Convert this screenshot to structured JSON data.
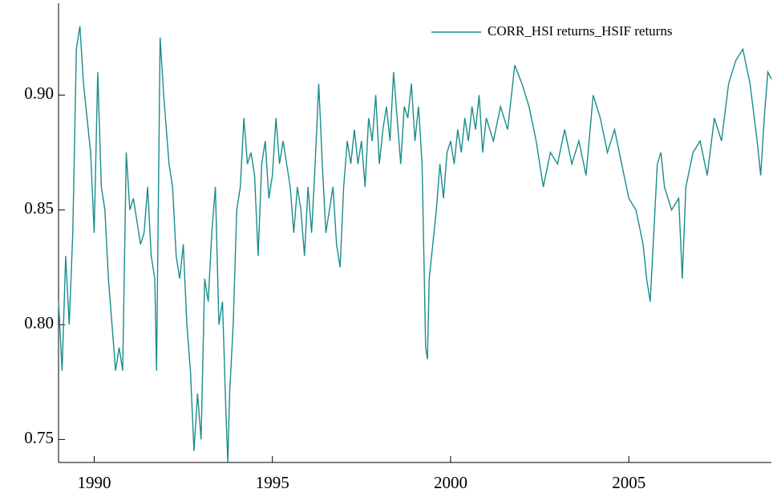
{
  "chart_data": {
    "type": "line",
    "x": [
      1989.0,
      1989.1,
      1989.2,
      1989.3,
      1989.4,
      1989.5,
      1989.6,
      1989.7,
      1989.8,
      1989.9,
      1990.0,
      1990.1,
      1990.2,
      1990.3,
      1990.4,
      1990.5,
      1990.6,
      1990.7,
      1990.8,
      1990.9,
      1991.0,
      1991.1,
      1991.2,
      1991.3,
      1991.4,
      1991.5,
      1991.6,
      1991.7,
      1991.75,
      1991.85,
      1991.95,
      1992.1,
      1992.2,
      1992.3,
      1992.4,
      1992.5,
      1992.6,
      1992.7,
      1992.8,
      1992.9,
      1993.0,
      1993.1,
      1993.2,
      1993.3,
      1993.4,
      1993.5,
      1993.6,
      1993.7,
      1993.75,
      1993.8,
      1993.9,
      1994.0,
      1994.1,
      1994.2,
      1994.3,
      1994.4,
      1994.5,
      1994.6,
      1994.7,
      1994.8,
      1994.9,
      1995.0,
      1995.1,
      1995.2,
      1995.3,
      1995.4,
      1995.5,
      1995.6,
      1995.7,
      1995.8,
      1995.9,
      1996.0,
      1996.1,
      1996.2,
      1996.3,
      1996.4,
      1996.5,
      1996.6,
      1996.7,
      1996.8,
      1996.9,
      1997.0,
      1997.1,
      1997.2,
      1997.3,
      1997.4,
      1997.5,
      1997.6,
      1997.7,
      1997.8,
      1997.9,
      1998.0,
      1998.1,
      1998.2,
      1998.3,
      1998.4,
      1998.5,
      1998.6,
      1998.7,
      1998.8,
      1998.9,
      1999.0,
      1999.1,
      1999.2,
      1999.3,
      1999.35,
      1999.4,
      1999.5,
      1999.6,
      1999.7,
      1999.8,
      1999.9,
      2000.0,
      2000.1,
      2000.2,
      2000.3,
      2000.4,
      2000.5,
      2000.6,
      2000.7,
      2000.8,
      2000.9,
      2001.0,
      2001.2,
      2001.4,
      2001.6,
      2001.8,
      2002.0,
      2002.2,
      2002.4,
      2002.6,
      2002.8,
      2003.0,
      2003.2,
      2003.4,
      2003.6,
      2003.8,
      2004.0,
      2004.2,
      2004.4,
      2004.6,
      2004.8,
      2005.0,
      2005.2,
      2005.4,
      2005.5,
      2005.6,
      2005.7,
      2005.8,
      2005.9,
      2006.0,
      2006.2,
      2006.4,
      2006.5,
      2006.6,
      2006.8,
      2007.0,
      2007.2,
      2007.4,
      2007.6,
      2007.8,
      2008.0,
      2008.2,
      2008.4,
      2008.6,
      2008.7,
      2008.8,
      2008.9,
      2009.0
    ],
    "series": [
      {
        "name": "CORR_HSI returns_HSIF returns",
        "color": "#1a8c8c",
        "values": [
          0.81,
          0.78,
          0.83,
          0.8,
          0.84,
          0.92,
          0.93,
          0.905,
          0.89,
          0.875,
          0.84,
          0.91,
          0.86,
          0.85,
          0.82,
          0.8,
          0.78,
          0.79,
          0.78,
          0.875,
          0.85,
          0.855,
          0.845,
          0.835,
          0.84,
          0.86,
          0.83,
          0.82,
          0.78,
          0.925,
          0.9,
          0.87,
          0.86,
          0.83,
          0.82,
          0.835,
          0.8,
          0.78,
          0.745,
          0.77,
          0.75,
          0.82,
          0.81,
          0.84,
          0.86,
          0.8,
          0.81,
          0.76,
          0.74,
          0.77,
          0.8,
          0.85,
          0.86,
          0.89,
          0.87,
          0.875,
          0.865,
          0.83,
          0.87,
          0.88,
          0.855,
          0.865,
          0.89,
          0.87,
          0.88,
          0.87,
          0.86,
          0.84,
          0.86,
          0.85,
          0.83,
          0.86,
          0.84,
          0.87,
          0.905,
          0.87,
          0.84,
          0.85,
          0.86,
          0.835,
          0.825,
          0.86,
          0.88,
          0.87,
          0.885,
          0.87,
          0.88,
          0.86,
          0.89,
          0.88,
          0.9,
          0.87,
          0.885,
          0.895,
          0.88,
          0.91,
          0.89,
          0.87,
          0.895,
          0.89,
          0.905,
          0.88,
          0.895,
          0.87,
          0.79,
          0.785,
          0.82,
          0.835,
          0.85,
          0.87,
          0.855,
          0.875,
          0.88,
          0.87,
          0.885,
          0.875,
          0.89,
          0.88,
          0.895,
          0.885,
          0.9,
          0.875,
          0.89,
          0.88,
          0.895,
          0.885,
          0.913,
          0.905,
          0.895,
          0.88,
          0.86,
          0.875,
          0.87,
          0.885,
          0.87,
          0.88,
          0.865,
          0.9,
          0.89,
          0.875,
          0.885,
          0.87,
          0.855,
          0.85,
          0.835,
          0.82,
          0.81,
          0.84,
          0.87,
          0.875,
          0.86,
          0.85,
          0.855,
          0.82,
          0.86,
          0.875,
          0.88,
          0.865,
          0.89,
          0.88,
          0.905,
          0.915,
          0.92,
          0.905,
          0.88,
          0.865,
          0.89,
          0.91,
          0.907
        ]
      }
    ],
    "xlim": [
      1989,
      2009
    ],
    "xticks": [
      1990,
      1995,
      2000,
      2005
    ],
    "ylim": [
      0.74,
      0.94
    ],
    "yticks": [
      0.75,
      {
        "value": 0.8,
        "label": "0.80"
      },
      0.85,
      {
        "value": 0.9,
        "label": "0.90"
      }
    ],
    "legend": "upper right"
  }
}
